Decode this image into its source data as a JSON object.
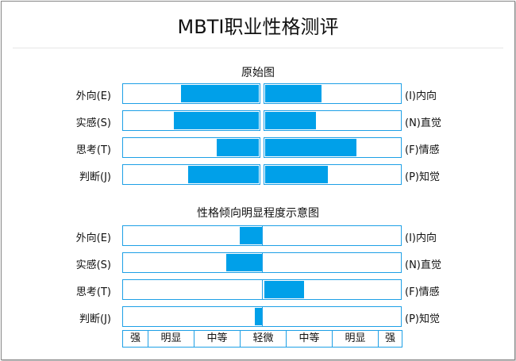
{
  "page": {
    "title": "MBTI职业性格测评"
  },
  "chart_data": [
    {
      "type": "bar",
      "title": "原始图",
      "categories": [
        {
          "left": "外向(E)",
          "right": "(I)内向"
        },
        {
          "left": "实感(S)",
          "right": "(N)直觉"
        },
        {
          "left": "思考(T)",
          "right": "(F)情感"
        },
        {
          "left": "判断(J)",
          "right": "(P)知觉"
        }
      ],
      "series": [
        {
          "values": [
            57,
            62,
            31,
            52
          ]
        },
        {
          "values": [
            41,
            37,
            67,
            46
          ]
        }
      ],
      "xlim": [
        0,
        100
      ],
      "colors": {
        "bar": "#00a0e9",
        "border": "#1ea0e6"
      }
    },
    {
      "type": "bar",
      "title": "性格倾向明显程度示意图",
      "categories": [
        {
          "left": "外向(E)",
          "right": "(I)内向"
        },
        {
          "left": "实感(S)",
          "right": "(N)直觉"
        },
        {
          "left": "思考(T)",
          "right": "(F)情感"
        },
        {
          "left": "判断(J)",
          "right": "(P)知觉"
        }
      ],
      "values": [
        16,
        26,
        0,
        5
      ],
      "values_right": [
        0,
        0,
        29,
        0
      ],
      "xlim": [
        0,
        100
      ],
      "scale_labels": [
        "强",
        "明显",
        "中等",
        "轻微",
        "中等",
        "明显",
        "强"
      ],
      "colors": {
        "bar": "#00a0e9",
        "border": "#1ea0e6"
      }
    }
  ]
}
